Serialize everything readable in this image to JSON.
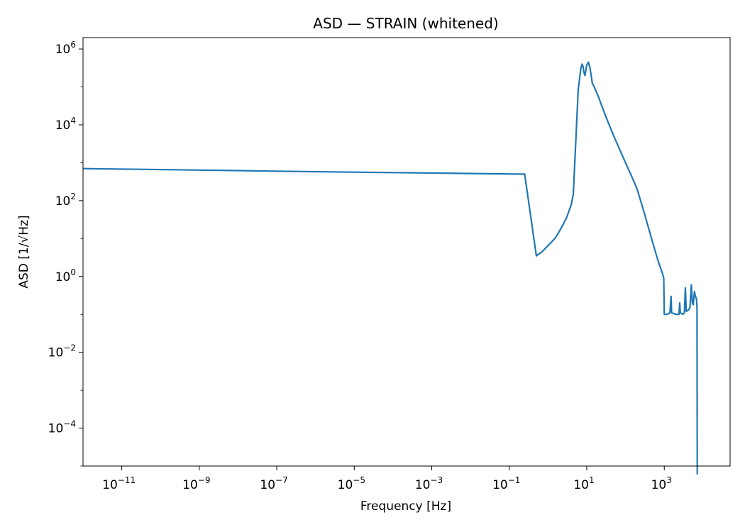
{
  "chart_data": {
    "type": "line",
    "title": "ASD — STRAIN (whitened)",
    "xlabel": "Frequency [Hz]",
    "ylabel": "ASD [1/√Hz]",
    "xscale": "log",
    "yscale": "log",
    "xlim": [
      1e-12,
      50000
    ],
    "ylim": [
      1e-05,
      2000000
    ],
    "xticks": [
      {
        "value": 1e-11,
        "base": "10",
        "exp": "−11"
      },
      {
        "value": 1e-09,
        "base": "10",
        "exp": "−9"
      },
      {
        "value": 1e-07,
        "base": "10",
        "exp": "−7"
      },
      {
        "value": 1e-05,
        "base": "10",
        "exp": "−5"
      },
      {
        "value": 0.001,
        "base": "10",
        "exp": "−3"
      },
      {
        "value": 0.1,
        "base": "10",
        "exp": "−1"
      },
      {
        "value": 10,
        "base": "10",
        "exp": "1"
      },
      {
        "value": 1000,
        "base": "10",
        "exp": "3"
      }
    ],
    "yticks": [
      {
        "value": 0.0001,
        "base": "10",
        "exp": "−4"
      },
      {
        "value": 0.01,
        "base": "10",
        "exp": "−2"
      },
      {
        "value": 1,
        "base": "10",
        "exp": "0"
      },
      {
        "value": 100,
        "base": "10",
        "exp": "2"
      },
      {
        "value": 10000,
        "base": "10",
        "exp": "4"
      },
      {
        "value": 1000000,
        "base": "10",
        "exp": "6"
      }
    ],
    "grid": false,
    "series": [
      {
        "color": "#1f77b4",
        "points": [
          [
            1e-12,
            700
          ],
          [
            1e-10,
            660
          ],
          [
            1e-08,
            620
          ],
          [
            1e-06,
            580
          ],
          [
            0.0001,
            550
          ],
          [
            0.01,
            520
          ],
          [
            0.25,
            500
          ],
          [
            0.5,
            3.5
          ],
          [
            0.7,
            4.5
          ],
          [
            1,
            6.5
          ],
          [
            1.5,
            10
          ],
          [
            2,
            16
          ],
          [
            3,
            35
          ],
          [
            4,
            80
          ],
          [
            4.5,
            150
          ],
          [
            5,
            1500
          ],
          [
            6,
            80000
          ],
          [
            7,
            300000
          ],
          [
            7.6,
            400000
          ],
          [
            8,
            350000
          ],
          [
            8.4,
            250000
          ],
          [
            9,
            200000
          ],
          [
            10,
            380000
          ],
          [
            11,
            450000
          ],
          [
            12,
            330000
          ],
          [
            13,
            200000
          ],
          [
            14,
            120000
          ],
          [
            15,
            110000
          ],
          [
            20,
            55000
          ],
          [
            30,
            18000
          ],
          [
            50,
            5000
          ],
          [
            100,
            1000
          ],
          [
            150,
            400
          ],
          [
            200,
            200
          ],
          [
            300,
            50
          ],
          [
            500,
            8
          ],
          [
            700,
            2.5
          ],
          [
            900,
            1.2
          ],
          [
            970,
            0.9
          ],
          [
            1000,
            0.1
          ],
          [
            1200,
            0.1
          ],
          [
            1400,
            0.11
          ],
          [
            1500,
            0.3
          ],
          [
            1550,
            0.11
          ],
          [
            2000,
            0.1
          ],
          [
            2400,
            0.1
          ],
          [
            2500,
            0.2
          ],
          [
            2600,
            0.11
          ],
          [
            3000,
            0.1
          ],
          [
            3300,
            0.11
          ],
          [
            3500,
            0.5
          ],
          [
            3700,
            0.12
          ],
          [
            4200,
            0.13
          ],
          [
            4600,
            0.15
          ],
          [
            5000,
            0.6
          ],
          [
            5300,
            0.2
          ],
          [
            5600,
            0.18
          ],
          [
            6000,
            0.4
          ],
          [
            6400,
            0.3
          ],
          [
            6800,
            0.25
          ],
          [
            7000,
            0.15
          ],
          [
            7100,
            6e-06
          ]
        ]
      }
    ]
  }
}
